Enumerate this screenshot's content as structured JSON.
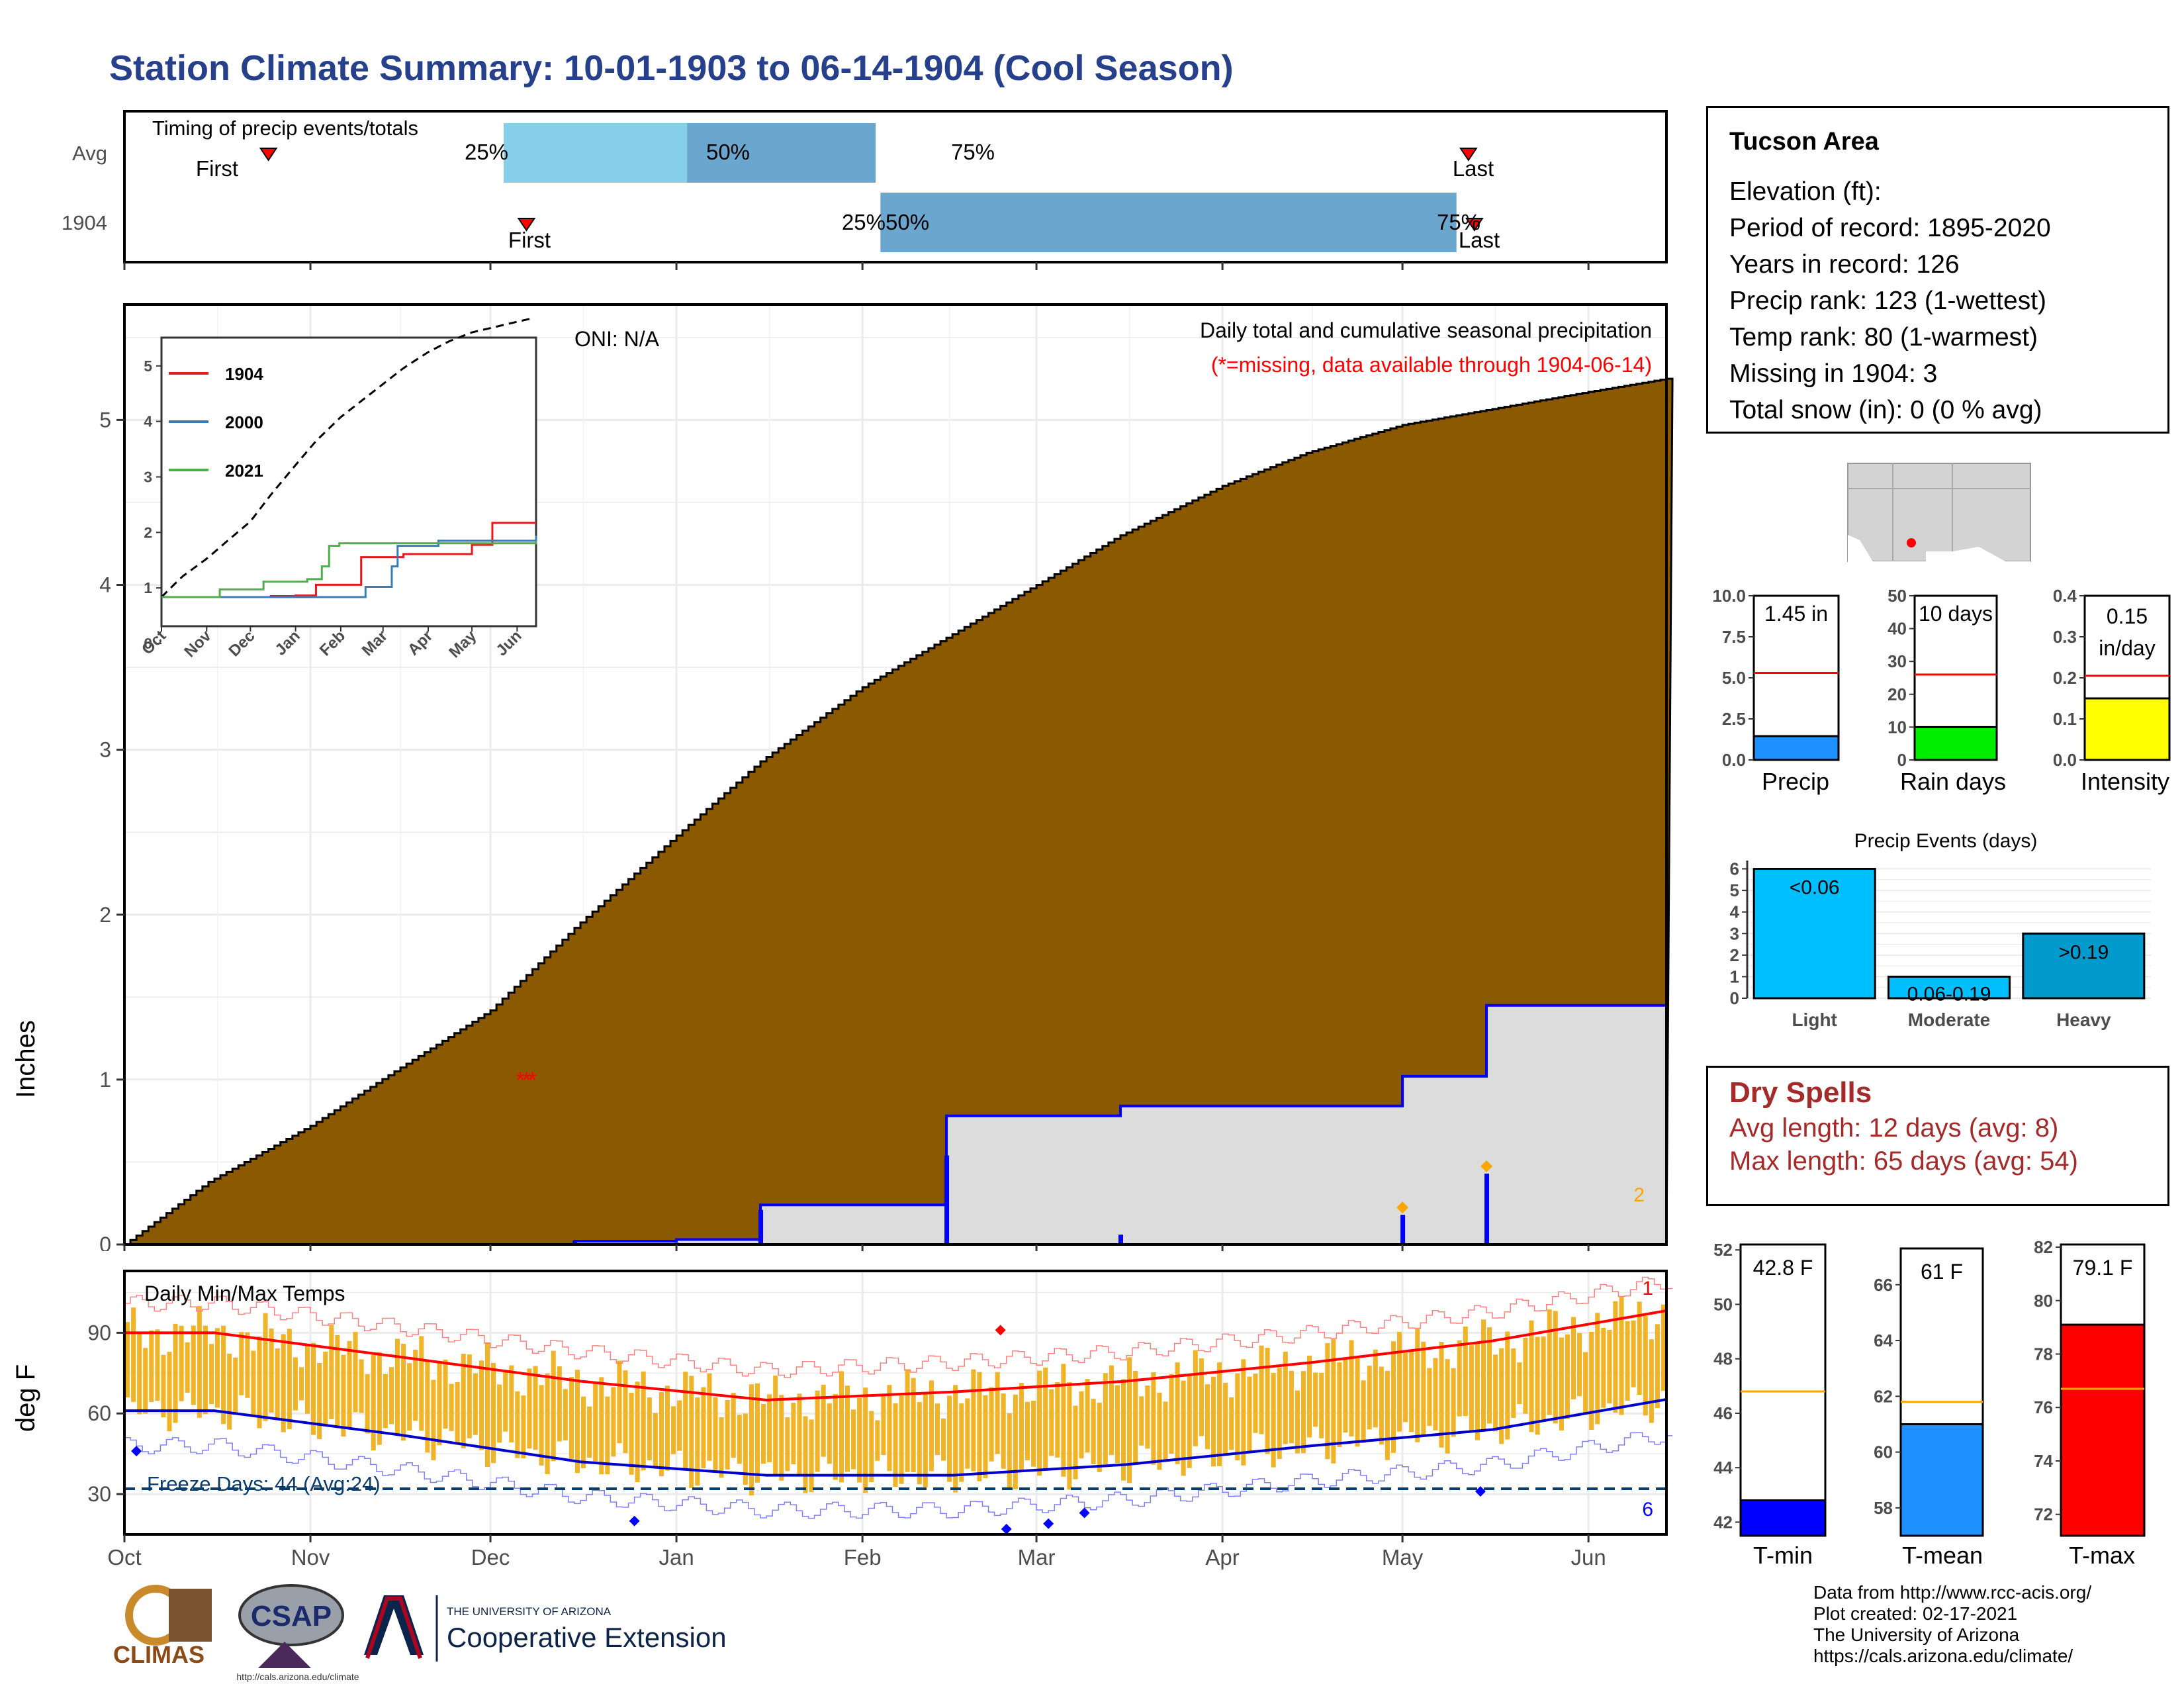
{
  "title": "Station Climate Summary: 10-01-1903 to 06-14-1904 (Cool Season)",
  "timing": {
    "label": "Timing of precip events/totals",
    "rows": [
      "Avg",
      "1904"
    ],
    "first_label": "First",
    "last_label": "Last",
    "pct_labels": [
      "25%",
      "50%",
      "75%"
    ],
    "avg_pct_date_labels": [
      "Dec",
      "Jan",
      "Feb"
    ],
    "avg_first": "Oct 25",
    "avg_last": "May 12",
    "yr_first": "Dec 7",
    "yr_last": "May 13",
    "yr_25_50_label": "25%50%",
    "yr_75_label": "75%",
    "colors": {
      "early": "#87ceeb",
      "late": "#6aa6cd"
    }
  },
  "main_chart": {
    "ylabel": "Inches",
    "oni": "ONI: N/A",
    "caption": "Daily total and cumulative seasonal precipitation",
    "missing_note": "(*=missing, data available through 1904-06-14)",
    "corner_count": "2",
    "month_labels": [
      "Oct",
      "Nov",
      "Dec",
      "Jan",
      "Feb",
      "Mar",
      "Apr",
      "May",
      "Jun"
    ],
    "y_ticks": [
      "0",
      "1",
      "2",
      "3",
      "4",
      "5"
    ],
    "colors": {
      "avg_fill": "#8b5a00",
      "obs_fill": "#dcdcdc",
      "obs_line": "#0000ff",
      "missing": "#ff0000",
      "event": "#ffa500"
    }
  },
  "inset": {
    "y_ticks": [
      "0",
      "1",
      "2",
      "3",
      "4",
      "5"
    ],
    "x_labels": [
      "Oct",
      "Nov",
      "Dec",
      "Jan",
      "Feb",
      "Mar",
      "Apr",
      "May",
      "Jun"
    ],
    "legend": [
      {
        "name": "1904",
        "color": "#e41a1c"
      },
      {
        "name": "2000",
        "color": "#377eb8"
      },
      {
        "name": "2021",
        "color": "#4daf4a"
      }
    ]
  },
  "temp_chart": {
    "ylabel": "deg F",
    "label": "Daily Min/Max Temps",
    "freeze_label": "Freeze Days: 44 (Avg:24)",
    "y_ticks": [
      "30",
      "60",
      "90"
    ],
    "count_high": "1",
    "count_low": "6",
    "colors": {
      "bar": "#f0b429",
      "max_avg": "#ff0000",
      "min_avg": "#0000cd",
      "freeze": "#0a3d6e"
    }
  },
  "station": {
    "name": "Tucson Area",
    "lines": [
      "Elevation (ft):",
      "Period of record: 1895-2020",
      "Years in record: 126",
      "Precip rank: 123 (1-wettest)",
      "Temp rank: 80 (1-warmest)",
      "Missing in 1904: 3",
      "Total snow (in): 0 (0 % avg)"
    ]
  },
  "summary_bars": [
    {
      "title": "Precip",
      "value_text": "1.45 in",
      "ticks": [
        "0.0",
        "2.5",
        "5.0",
        "7.5",
        "10.0"
      ],
      "max": 10,
      "value": 1.45,
      "avg": 5.3,
      "color": "#1e90ff"
    },
    {
      "title": "Rain days",
      "value_text": "10 days",
      "ticks": [
        "0",
        "10",
        "20",
        "30",
        "40",
        "50"
      ],
      "max": 50,
      "value": 10,
      "avg": 26,
      "color": "#00ee00"
    },
    {
      "title": "Intensity",
      "value_text": "0.15 in/day",
      "ticks": [
        "0.0",
        "0.1",
        "0.2",
        "0.3",
        "0.4"
      ],
      "max": 0.4,
      "value": 0.15,
      "avg": 0.205,
      "color": "#ffff00"
    }
  ],
  "precip_events": {
    "title": "Precip Events (days)",
    "categories": [
      "Light",
      "Moderate",
      "Heavy"
    ],
    "bar_labels": [
      "<0.06",
      "0.06-0.19",
      ">0.19"
    ],
    "values": [
      6,
      1,
      3
    ],
    "y_ticks": [
      "0",
      "1",
      "2",
      "3",
      "4",
      "5",
      "6"
    ],
    "color": "#00bfff"
  },
  "dry_spells": {
    "title": "Dry Spells",
    "avg_line": "Avg length: 12 days (avg: 8)",
    "max_line": "Max length: 65 days (avg: 54)"
  },
  "temp_bars": [
    {
      "title": "T-min",
      "value_text": "42.8 F",
      "ticks": [
        "42",
        "44",
        "46",
        "48",
        "50",
        "52"
      ],
      "min": 41.5,
      "max": 52.2,
      "value": 42.8,
      "avg": 46.8,
      "color": "#0000ff"
    },
    {
      "title": "T-mean",
      "value_text": "61 F",
      "ticks": [
        "58",
        "60",
        "62",
        "64",
        "66"
      ],
      "min": 57.0,
      "max": 67.3,
      "value": 61.0,
      "avg": 61.8,
      "color": "#1e90ff"
    },
    {
      "title": "T-max",
      "value_text": "79.1 F",
      "ticks": [
        "72",
        "74",
        "76",
        "78",
        "80",
        "82"
      ],
      "min": 71.2,
      "max": 82.1,
      "value": 79.1,
      "avg": 76.7,
      "color": "#ff0000"
    }
  ],
  "logos": {
    "climas": "CLIMAS",
    "csap": "CSAP",
    "csap_url": "http://cals.arizona.edu/climate",
    "ua_small": "THE UNIVERSITY OF ARIZONA",
    "ua_big": "Cooperative Extension"
  },
  "credits": [
    "Data from http://www.rcc-acis.org/",
    "Plot created: 02-17-2021",
    "The University of Arizona",
    "https://cals.arizona.edu/climate/"
  ],
  "chart_data": [
    {
      "type": "area",
      "title": "Daily total and cumulative seasonal precipitation",
      "ylabel": "Inches",
      "ylim": [
        0,
        5.7
      ],
      "x": [
        "Oct 1",
        "Oct 15",
        "Nov 1",
        "Nov 15",
        "Dec 1",
        "Dec 15",
        "Jan 1",
        "Jan 15",
        "Feb 1",
        "Feb 15",
        "Mar 1",
        "Mar 15",
        "Apr 1",
        "Apr 15",
        "May 1",
        "May 15",
        "Jun 1",
        "Jun 14"
      ],
      "series": [
        {
          "name": "Avg",
          "values": [
            0.0,
            0.38,
            0.72,
            1.05,
            1.42,
            1.92,
            2.48,
            2.93,
            3.38,
            3.68,
            4.0,
            4.3,
            4.6,
            4.8,
            4.97,
            5.06,
            5.17,
            5.25
          ]
        },
        {
          "name": "1904",
          "values": [
            0.0,
            0.0,
            0.0,
            0.0,
            0.0,
            0.02,
            0.03,
            0.24,
            0.24,
            0.78,
            0.78,
            0.84,
            0.84,
            0.84,
            1.02,
            1.45,
            1.45,
            1.45
          ]
        }
      ]
    },
    {
      "type": "bar",
      "title": "Daily Min/Max Temps",
      "ylabel": "deg F",
      "ylim": [
        15,
        113
      ],
      "x": [
        "Oct",
        "Nov",
        "Dec",
        "Jan",
        "Feb",
        "Mar",
        "Apr",
        "May",
        "Jun"
      ],
      "series": [
        {
          "name": "Avg max",
          "values": [
            90,
            81,
            72,
            65,
            68,
            72,
            79,
            87,
            99
          ]
        },
        {
          "name": "Avg min",
          "values": [
            61,
            52,
            42,
            37,
            37,
            41,
            48,
            54,
            66
          ]
        },
        {
          "name": "Freeze",
          "values": [
            32,
            32,
            32,
            32,
            32,
            32,
            32,
            32,
            32
          ]
        }
      ]
    }
  ]
}
